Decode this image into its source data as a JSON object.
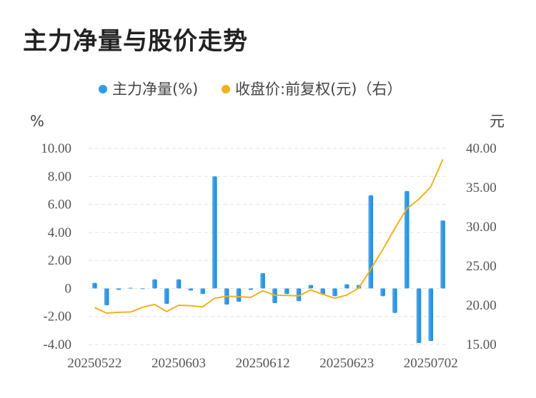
{
  "title": "主力净量与股价走势",
  "chart_data": {
    "type": "bar+line",
    "legend": [
      {
        "label": "主力净量(%)",
        "color": "#2e9ae8"
      },
      {
        "label": "收盘价:前复权(元)（右）",
        "color": "#f2b11b"
      }
    ],
    "left_axis": {
      "unit": "%",
      "min": -4,
      "max": 10,
      "ticks": [
        "10.00",
        "8.00",
        "6.00",
        "4.00",
        "2.00",
        "0",
        "-2.00",
        "-4.00"
      ],
      "tick_values": [
        10,
        8,
        6,
        4,
        2,
        0,
        -2,
        -4
      ]
    },
    "right_axis": {
      "unit": "元",
      "min": 15,
      "max": 40,
      "ticks": [
        "40.00",
        "35.00",
        "30.00",
        "25.00",
        "20.00",
        "15.00"
      ],
      "tick_values": [
        40,
        35,
        30,
        25,
        20,
        15
      ]
    },
    "x_labels": [
      {
        "index": 0,
        "label": "20250522"
      },
      {
        "index": 7,
        "label": "20250603"
      },
      {
        "index": 14,
        "label": "20250612"
      },
      {
        "index": 21,
        "label": "20250623"
      },
      {
        "index": 28,
        "label": "20250702"
      }
    ],
    "series": [
      {
        "name": "主力净量(%)",
        "type": "bar",
        "values": [
          0.4,
          -1.2,
          -0.1,
          0.05,
          -0.05,
          0.65,
          -1.1,
          0.65,
          -0.15,
          -0.4,
          8.0,
          -1.15,
          -0.95,
          -0.1,
          1.1,
          -1.05,
          -0.4,
          -0.9,
          0.25,
          -0.45,
          -0.55,
          0.3,
          0.25,
          6.65,
          -0.55,
          -1.75,
          6.95,
          -3.9,
          -3.75,
          4.85
        ]
      },
      {
        "name": "收盘价:前复权(元)（右）",
        "type": "line",
        "values": [
          19.7,
          19.0,
          19.1,
          19.15,
          19.75,
          20.1,
          19.2,
          20.0,
          19.95,
          19.8,
          20.9,
          21.15,
          21.1,
          21.0,
          21.85,
          21.3,
          21.25,
          21.2,
          21.95,
          21.4,
          20.9,
          21.3,
          22.2,
          24.6,
          27.1,
          29.8,
          32.3,
          33.5,
          35.1,
          38.6
        ]
      }
    ]
  }
}
